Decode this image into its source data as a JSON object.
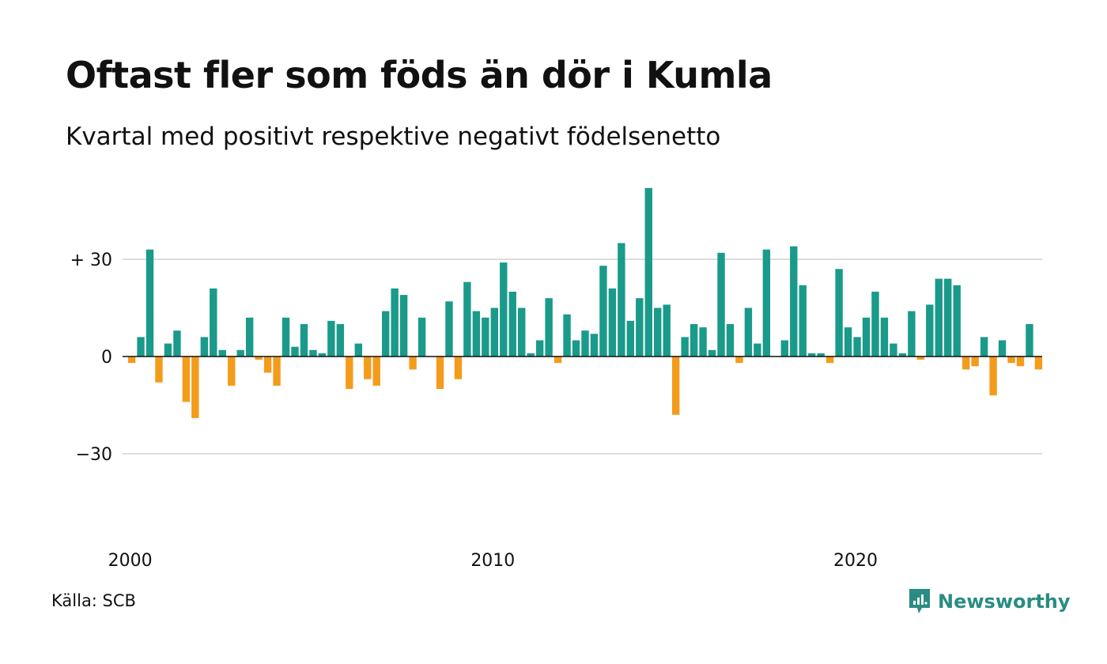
{
  "header": {
    "title": "Oftast fler som föds än dör i Kumla",
    "subtitle": "Kvartal med positivt respektive negativt födelsenetto"
  },
  "footer": {
    "source": "Källa: SCB",
    "brand": "Newsworthy",
    "brand_icon": "newsworthy-logo-icon"
  },
  "colors": {
    "positive": "#1a9a8a",
    "negative": "#f39c1c",
    "grid": "#dddddd",
    "baseline": "#111111",
    "brand": "#2a8c82"
  },
  "chart_data": {
    "type": "bar",
    "title": "Oftast fler som föds än dör i Kumla",
    "subtitle": "Kvartal med positivt respektive negativt födelsenetto",
    "xlabel": "",
    "ylabel": "",
    "ylim": [
      -57,
      52
    ],
    "y_ticks": [
      {
        "value": 30,
        "label": "+ 30"
      },
      {
        "value": 0,
        "label": "0"
      },
      {
        "value": -30,
        "label": "−30"
      }
    ],
    "x_ticks": [
      {
        "value": "2000",
        "label": "2000"
      },
      {
        "value": "2010",
        "label": "2010"
      },
      {
        "value": "2020",
        "label": "2020"
      }
    ],
    "grid": true,
    "legend": "none",
    "categories": [
      "2000 K1",
      "2000 K2",
      "2000 K3",
      "2000 K4",
      "2001 K1",
      "2001 K2",
      "2001 K3",
      "2001 K4",
      "2002 K1",
      "2002 K2",
      "2002 K3",
      "2002 K4",
      "2003 K1",
      "2003 K2",
      "2003 K3",
      "2003 K4",
      "2004 K1",
      "2004 K2",
      "2004 K3",
      "2004 K4",
      "2005 K1",
      "2005 K2",
      "2005 K3",
      "2005 K4",
      "2006 K1",
      "2006 K2",
      "2006 K3",
      "2006 K4",
      "2007 K1",
      "2007 K2",
      "2007 K3",
      "2007 K4",
      "2008 K1",
      "2008 K2",
      "2008 K3",
      "2008 K4",
      "2009 K1",
      "2009 K2",
      "2009 K3",
      "2009 K4",
      "2010 K1",
      "2010 K2",
      "2010 K3",
      "2010 K4",
      "2011 K1",
      "2011 K2",
      "2011 K3",
      "2011 K4",
      "2012 K1",
      "2012 K2",
      "2012 K3",
      "2012 K4",
      "2013 K1",
      "2013 K2",
      "2013 K3",
      "2013 K4",
      "2014 K1",
      "2014 K2",
      "2014 K3",
      "2014 K4",
      "2015 K1",
      "2015 K2",
      "2015 K3",
      "2015 K4",
      "2016 K1",
      "2016 K2",
      "2016 K3",
      "2016 K4",
      "2017 K1",
      "2017 K2",
      "2017 K3",
      "2017 K4",
      "2018 K1",
      "2018 K2",
      "2018 K3",
      "2018 K4",
      "2019 K1",
      "2019 K2",
      "2019 K3",
      "2019 K4",
      "2020 K1",
      "2020 K2",
      "2020 K3",
      "2020 K4",
      "2021 K1",
      "2021 K2",
      "2021 K3",
      "2021 K4",
      "2022 K1",
      "2022 K2",
      "2022 K3",
      "2022 K4",
      "2023 K1",
      "2023 K2",
      "2023 K3",
      "2023 K4",
      "2024 K1",
      "2024 K2",
      "2024 K3",
      "2024 K4",
      "2025 K1"
    ],
    "values": [
      -2,
      6,
      33,
      -8,
      4,
      8,
      -14,
      -19,
      6,
      21,
      2,
      -9,
      2,
      12,
      -1,
      -5,
      -9,
      12,
      3,
      10,
      2,
      1,
      11,
      10,
      -10,
      4,
      -7,
      -9,
      14,
      21,
      19,
      -4,
      12,
      0,
      -10,
      17,
      -7,
      23,
      14,
      12,
      15,
      29,
      20,
      15,
      1,
      5,
      18,
      -2,
      13,
      5,
      8,
      7,
      28,
      21,
      35,
      11,
      18,
      52,
      15,
      16,
      -18,
      6,
      10,
      9,
      2,
      32,
      10,
      -2,
      15,
      4,
      33,
      0,
      5,
      34,
      22,
      1,
      1,
      -2,
      27,
      9,
      6,
      12,
      20,
      12,
      4,
      1,
      14,
      -1,
      16,
      24,
      24,
      22,
      -4,
      -3,
      6,
      -12,
      5,
      -2,
      -3,
      10,
      -4
    ]
  }
}
